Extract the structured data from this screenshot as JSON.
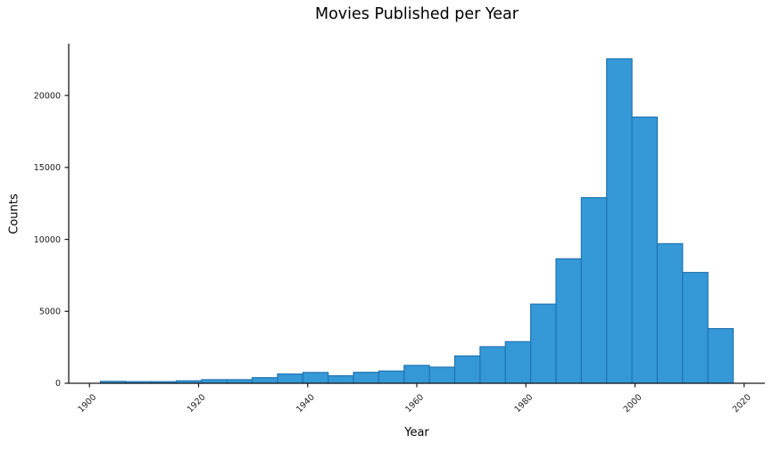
{
  "chart_data": {
    "type": "bar",
    "subtype": "histogram",
    "title": "Movies Published per Year",
    "xlabel": "Year",
    "ylabel": "Counts",
    "bin_edges": [
      1902,
      1906.64,
      1911.28,
      1915.92,
      1920.56,
      1925.2,
      1929.84,
      1934.48,
      1939.12,
      1943.76,
      1948.4,
      1953.04,
      1957.68,
      1962.32,
      1966.96,
      1971.6,
      1976.24,
      1980.88,
      1985.52,
      1990.16,
      1994.8,
      1999.44,
      2004.08,
      2008.72,
      2013.36,
      2018
    ],
    "counts": [
      130,
      110,
      110,
      170,
      250,
      250,
      390,
      640,
      750,
      520,
      760,
      850,
      1240,
      1120,
      1900,
      2540,
      2890,
      5500,
      8650,
      12900,
      22550,
      18500,
      9700,
      7700,
      3800
    ],
    "xticks": [
      1900,
      1920,
      1940,
      1960,
      1980,
      2000,
      2020
    ],
    "yticks": [
      0,
      5000,
      10000,
      15000,
      20000
    ],
    "xlim": [
      1896.2,
      2023.8
    ],
    "ylim": [
      0,
      23600
    ],
    "grid": false,
    "legend": null,
    "x_tick_rotation_deg": 45,
    "bar_fill": "#3598d7",
    "bar_edge": "#2074b2",
    "axis_color": "#1a1a1a",
    "background": "#ffffff"
  }
}
